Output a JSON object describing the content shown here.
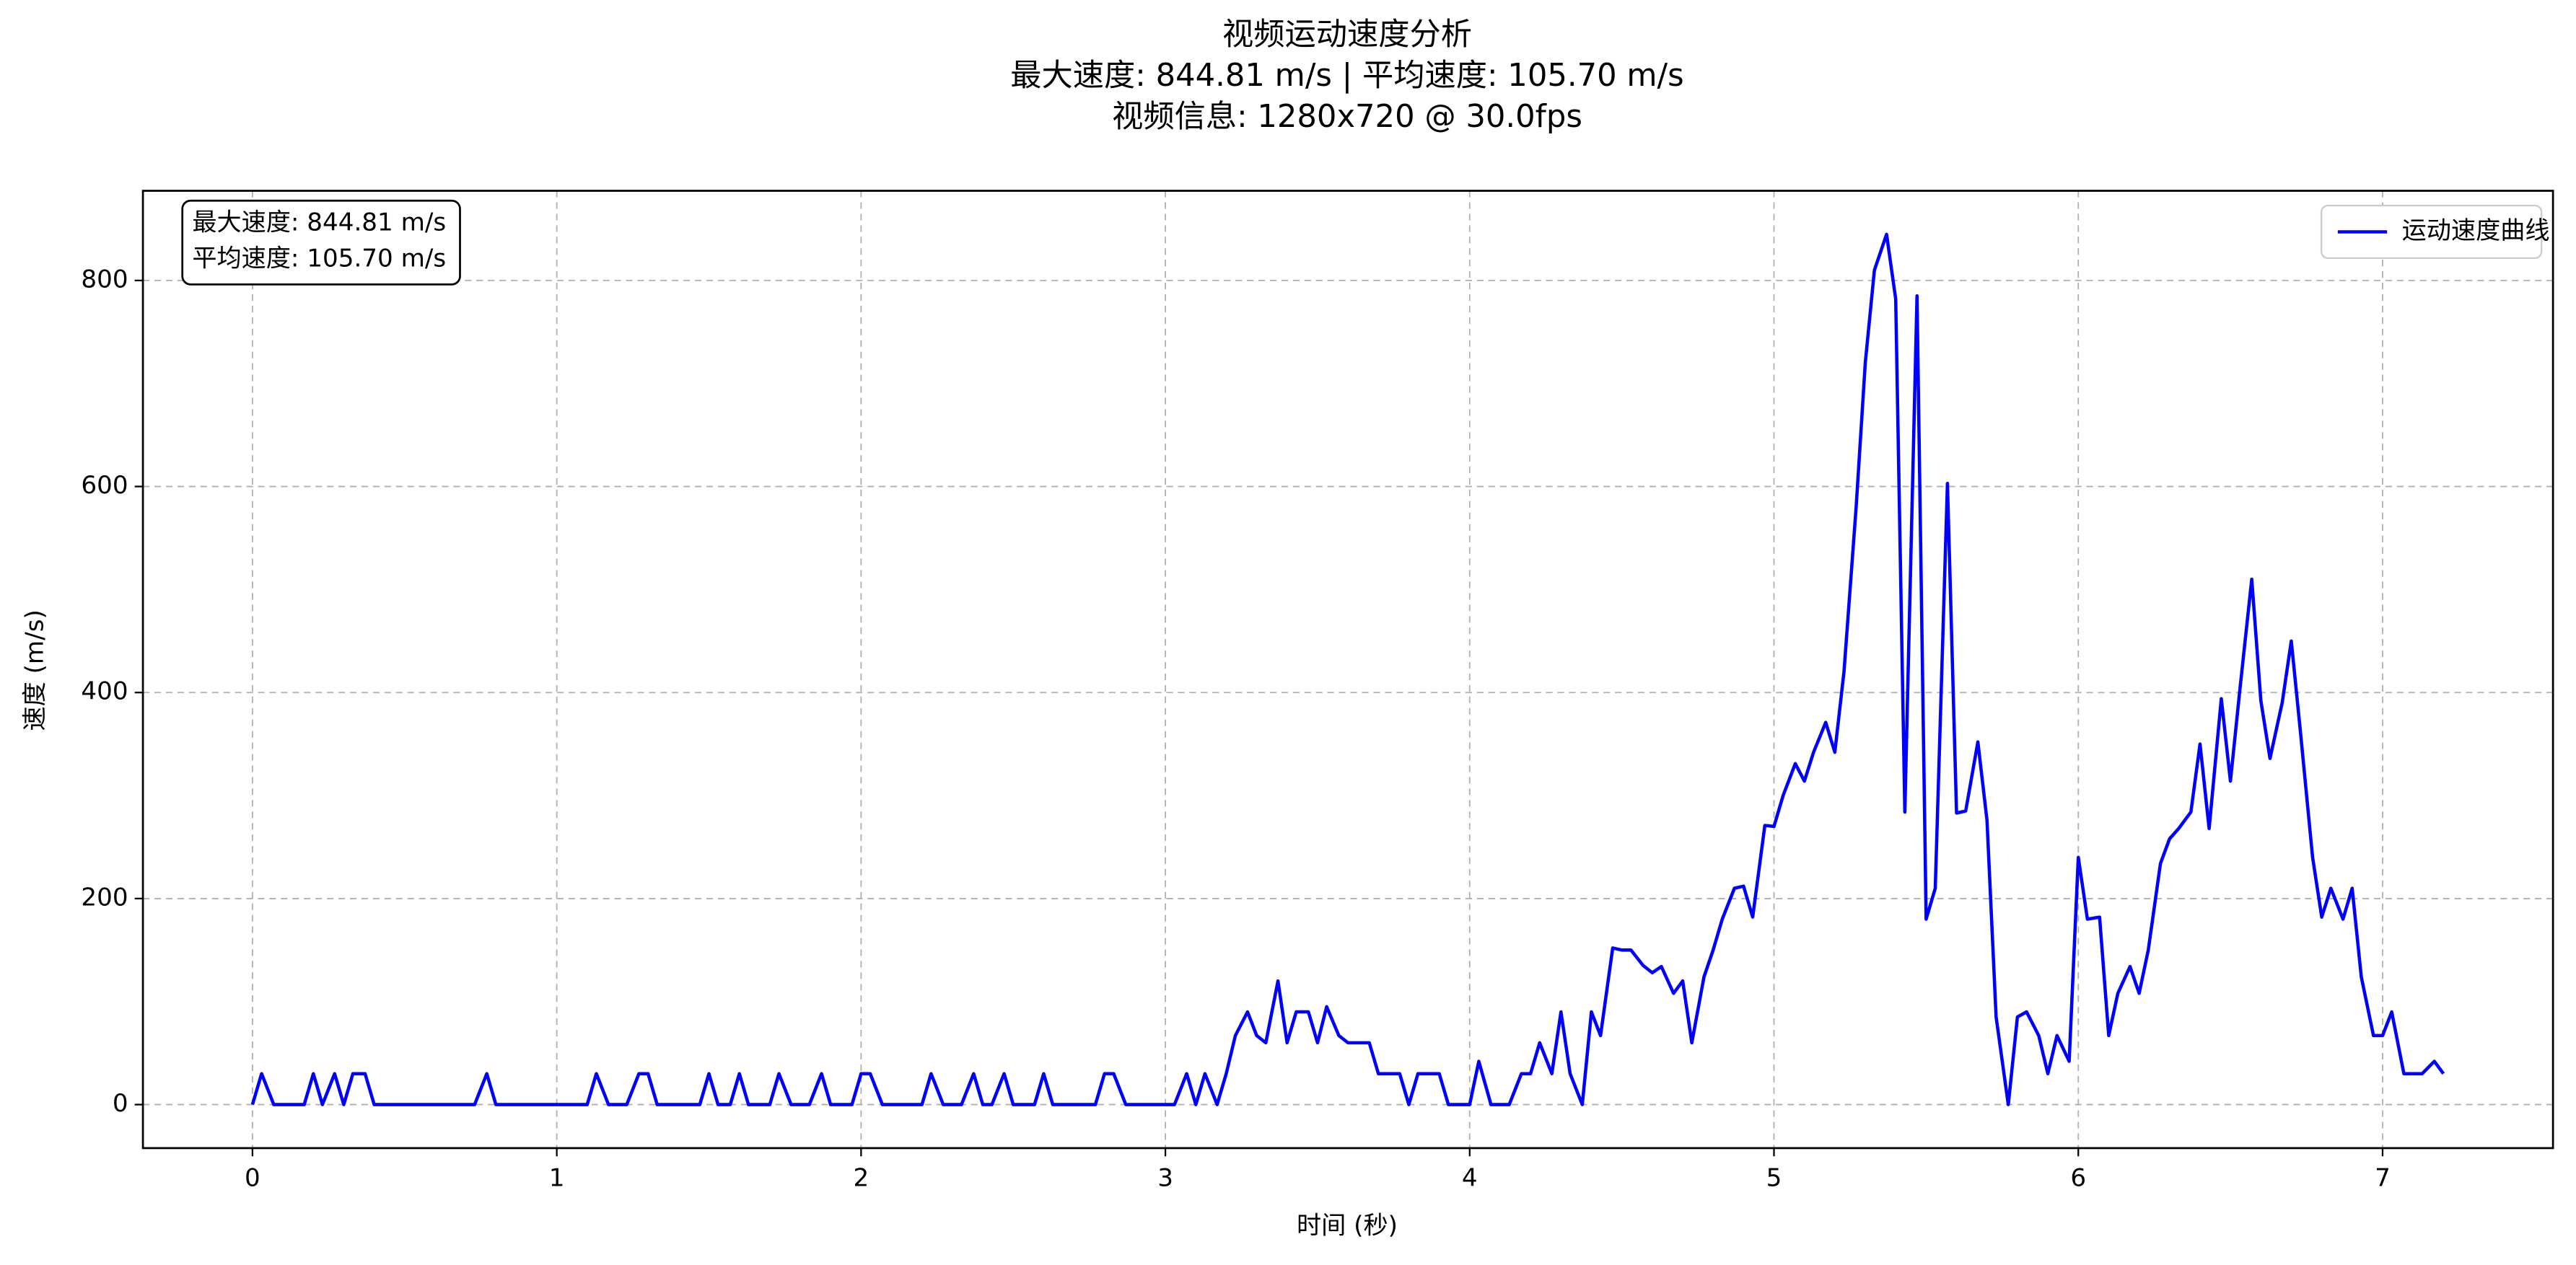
{
  "chart_data": {
    "type": "line",
    "title": [
      "视频运动速度分析",
      "最大速度: 844.81 m/s | 平均速度: 105.70 m/s",
      "视频信息: 1280x720 @ 30.0fps"
    ],
    "stats_box": [
      "最大速度: 844.81 m/s",
      "平均速度: 105.70 m/s"
    ],
    "xlabel": "时间 (秒)",
    "ylabel": "速度 (m/s)",
    "x": [
      0.0,
      0.03,
      0.07,
      0.17,
      0.2,
      0.23,
      0.27,
      0.3,
      0.33,
      0.37,
      0.4,
      0.73,
      0.77,
      0.8,
      1.1,
      1.13,
      1.17,
      1.23,
      1.27,
      1.3,
      1.33,
      1.47,
      1.5,
      1.53,
      1.57,
      1.6,
      1.63,
      1.7,
      1.73,
      1.77,
      1.83,
      1.87,
      1.9,
      1.97,
      2.0,
      2.03,
      2.07,
      2.2,
      2.23,
      2.27,
      2.33,
      2.37,
      2.4,
      2.43,
      2.47,
      2.5,
      2.57,
      2.6,
      2.63,
      2.77,
      2.8,
      2.83,
      2.87,
      3.03,
      3.07,
      3.1,
      3.13,
      3.17,
      3.2,
      3.23,
      3.27,
      3.3,
      3.33,
      3.37,
      3.4,
      3.43,
      3.47,
      3.5,
      3.53,
      3.57,
      3.6,
      3.67,
      3.7,
      3.77,
      3.8,
      3.83,
      3.9,
      3.93,
      4.0,
      4.03,
      4.07,
      4.13,
      4.17,
      4.2,
      4.23,
      4.27,
      4.3,
      4.33,
      4.37,
      4.4,
      4.43,
      4.47,
      4.5,
      4.53,
      4.57,
      4.6,
      4.63,
      4.67,
      4.7,
      4.73,
      4.77,
      4.8,
      4.83,
      4.87,
      4.9,
      4.93,
      4.97,
      5.0,
      5.03,
      5.07,
      5.1,
      5.13,
      5.17,
      5.2,
      5.23,
      5.27,
      5.3,
      5.33,
      5.37,
      5.4,
      5.43,
      5.47,
      5.5,
      5.53,
      5.57,
      5.6,
      5.63,
      5.67,
      5.7,
      5.73,
      5.77,
      5.8,
      5.83,
      5.87,
      5.9,
      5.93,
      5.97,
      6.0,
      6.03,
      6.07,
      6.1,
      6.13,
      6.17,
      6.2,
      6.23,
      6.27,
      6.3,
      6.33,
      6.37,
      6.4,
      6.43,
      6.47,
      6.5,
      6.53,
      6.57,
      6.6,
      6.63,
      6.67,
      6.7,
      6.73,
      6.77,
      6.8,
      6.83,
      6.87,
      6.9,
      6.93,
      6.97,
      7.0,
      7.03,
      7.07,
      7.13,
      7.17,
      7.2
    ],
    "series": [
      {
        "name": "运动速度曲线",
        "color": "#0000ff",
        "values": [
          0,
          30,
          0,
          0,
          30,
          0,
          30,
          0,
          30,
          30,
          0,
          0,
          30,
          0,
          0,
          30,
          0,
          0,
          30,
          30,
          0,
          0,
          30,
          0,
          0,
          30,
          0,
          0,
          30,
          0,
          0,
          30,
          0,
          0,
          30,
          30,
          0,
          0,
          30,
          0,
          0,
          30,
          0,
          0,
          30,
          0,
          0,
          30,
          0,
          0,
          30,
          30,
          0,
          0,
          30,
          0,
          30,
          0,
          30,
          67,
          90,
          67,
          60,
          120,
          60,
          90,
          90,
          60,
          95,
          67,
          60,
          60,
          30,
          30,
          0,
          30,
          30,
          0,
          0,
          42,
          0,
          0,
          30,
          30,
          60,
          30,
          90,
          30,
          0,
          90,
          67,
          152,
          150,
          150,
          135,
          128,
          134,
          108,
          120,
          60,
          124,
          150,
          180,
          210,
          212,
          182,
          271,
          270,
          300,
          331,
          314,
          342,
          371,
          342,
          420,
          580,
          720,
          810,
          844.81,
          782,
          284,
          785,
          180,
          210,
          603,
          283,
          285,
          352,
          276,
          85,
          0,
          85,
          90,
          67,
          30,
          67,
          42,
          240,
          180,
          182,
          67,
          108,
          134,
          108,
          150,
          234,
          258,
          268,
          284,
          350,
          268,
          394,
          314,
          400,
          510,
          392,
          336,
          390,
          450,
          362,
          240,
          182,
          210,
          180,
          210,
          124,
          67,
          67,
          90,
          30,
          30,
          42,
          30
        ]
      }
    ],
    "xlim": [
      -0.36,
      7.56
    ],
    "ylim": [
      -42.24,
      887.05
    ],
    "xticks": [
      0,
      1,
      2,
      3,
      4,
      5,
      6,
      7
    ],
    "yticks": [
      0,
      200,
      400,
      600,
      800
    ],
    "grid": true,
    "legend": "upper right"
  }
}
